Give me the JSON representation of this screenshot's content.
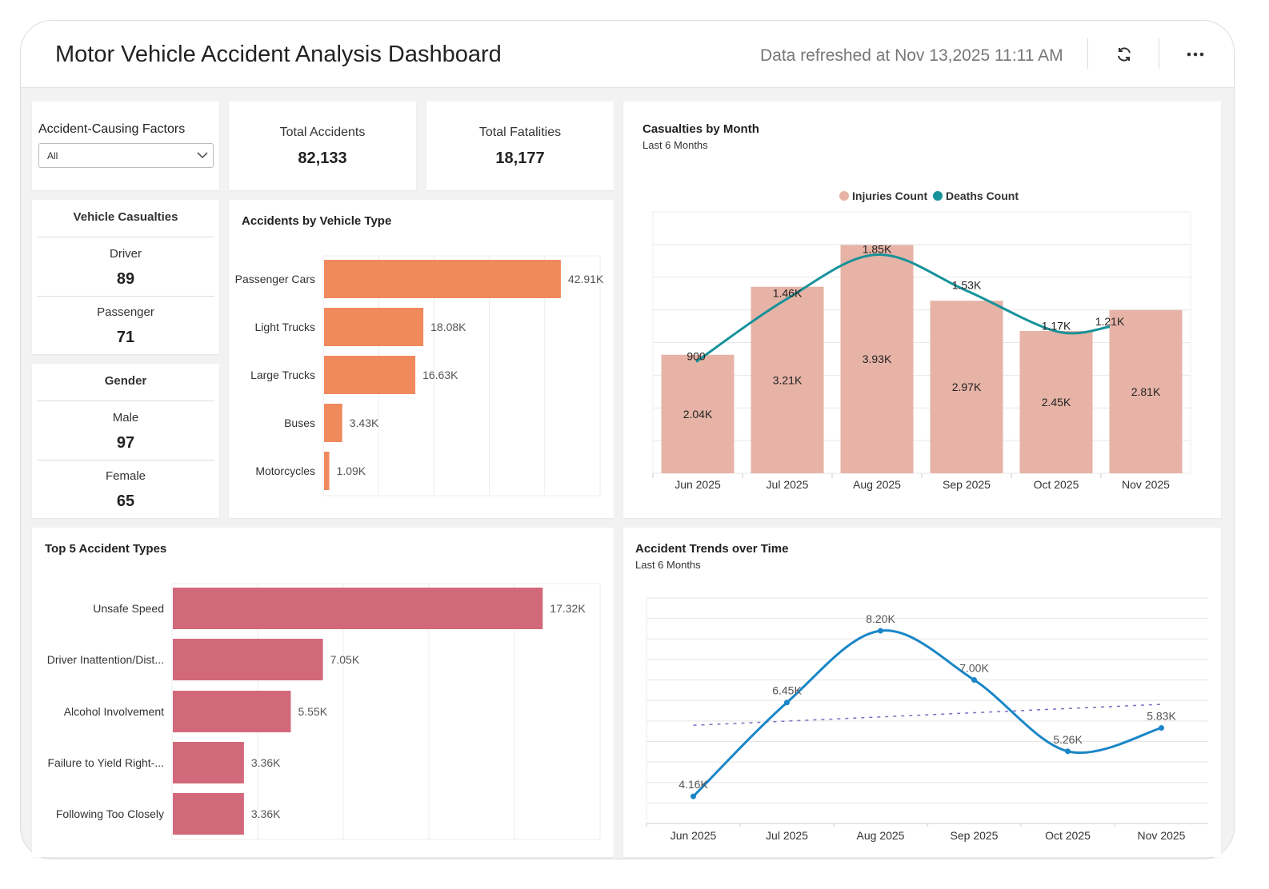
{
  "header": {
    "title": "Motor Vehicle Accident Analysis Dashboard",
    "refreshed": "Data refreshed at Nov 13,2025 11:11 AM",
    "refresh_icon": "refresh-icon",
    "more_icon": "more-horizontal-icon"
  },
  "filter": {
    "label": "Accident-Causing Factors",
    "value": "All"
  },
  "kpis": {
    "total_accidents_label": "Total Accidents",
    "total_accidents": "82,133",
    "total_fatalities_label": "Total Fatalities",
    "total_fatalities": "18,177"
  },
  "vehicle_casualties": {
    "title": "Vehicle Casualties",
    "driver_label": "Driver",
    "driver": "89",
    "passenger_label": "Passenger",
    "passenger": "71"
  },
  "gender": {
    "title": "Gender",
    "male_label": "Male",
    "male": "97",
    "female_label": "Female",
    "female": "65"
  },
  "chart_data": [
    {
      "id": "vehicle_type",
      "type": "bar",
      "orientation": "horizontal",
      "title": "Accidents by Vehicle Type",
      "categories": [
        "Passenger Cars",
        "Light Trucks",
        "Large Trucks",
        "Buses",
        "Motorcycles"
      ],
      "values": [
        42910,
        18080,
        16630,
        3430,
        1090
      ],
      "labels": [
        "42.91K",
        "18.08K",
        "16.63K",
        "3.43K",
        "1.09K"
      ],
      "xlim": [
        0,
        50000
      ],
      "grid": true,
      "color": "#f08a5d"
    },
    {
      "id": "casualties",
      "type": "bar",
      "title": "Casualties by Month",
      "subtitle": "Last 6 Months",
      "categories": [
        "Jun 2025",
        "Jul 2025",
        "Aug 2025",
        "Sep 2025",
        "Oct 2025",
        "Nov 2025"
      ],
      "series": [
        {
          "name": "Injuries Count",
          "type": "bar",
          "values": [
            2040,
            3210,
            3930,
            2970,
            2450,
            2810
          ],
          "labels": [
            "2.04K",
            "3.21K",
            "3.93K",
            "2.97K",
            "2.45K",
            "2.81K"
          ],
          "color": "#e6b3a6"
        },
        {
          "name": "Deaths Count",
          "type": "line",
          "smooth": true,
          "axis": "secondary",
          "values": [
            900,
            1460,
            1850,
            1530,
            1170,
            1210
          ],
          "labels": [
            "900",
            "1.46K",
            "1.85K",
            "1.53K",
            "1.17K",
            "1.21K"
          ],
          "color": "#16929a"
        }
      ],
      "ylim": [
        0,
        4500
      ],
      "y2lim": [
        -90,
        2230
      ],
      "legend": "top",
      "grid": true
    },
    {
      "id": "top5",
      "type": "bar",
      "orientation": "horizontal",
      "title": "Top 5 Accident Types",
      "categories": [
        "Unsafe Speed",
        "Driver Inattention/Dist...",
        "Alcohol Involvement",
        "Failure to Yield Right-...",
        "Following Too Closely"
      ],
      "values": [
        17320,
        7050,
        5550,
        3360,
        3360
      ],
      "labels": [
        "17.32K",
        "7.05K",
        "5.55K",
        "3.36K",
        "3.36K"
      ],
      "xlim": [
        0,
        20000
      ],
      "grid": true,
      "color": "#d2697a"
    },
    {
      "id": "trends",
      "type": "line",
      "smooth": true,
      "title": "Accident Trends over Time",
      "subtitle": "Last 6 Months",
      "categories": [
        "Jun 2025",
        "Jul 2025",
        "Aug 2025",
        "Sep 2025",
        "Oct 2025",
        "Nov 2025"
      ],
      "values": [
        4160,
        6450,
        8200,
        7000,
        5260,
        5830
      ],
      "labels": [
        "4.16K",
        "6.45K",
        "8.20K",
        "7.00K",
        "5.26K",
        "5.83K"
      ],
      "ylim": [
        3500,
        9000
      ],
      "trendline": true,
      "grid": true,
      "color": "#1a86c8",
      "trend_color": "#7b6fc0"
    }
  ]
}
